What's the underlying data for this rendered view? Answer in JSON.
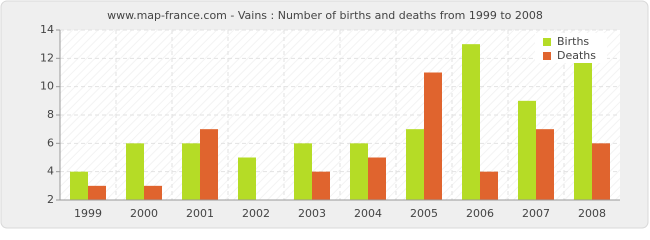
{
  "chart_data": {
    "type": "bar",
    "title": "www.map-france.com - Vains : Number of births and deaths from 1999 to 2008",
    "categories": [
      "1999",
      "2000",
      "2001",
      "2002",
      "2003",
      "2004",
      "2005",
      "2006",
      "2007",
      "2008"
    ],
    "series": [
      {
        "name": "Births",
        "color": "#b5dc26",
        "values": [
          4,
          6,
          6,
          5,
          6,
          6,
          7,
          13,
          9,
          12
        ]
      },
      {
        "name": "Deaths",
        "color": "#e0642e",
        "values": [
          3,
          3,
          7,
          2,
          4,
          5,
          11,
          4,
          7,
          6
        ]
      }
    ],
    "ylim": [
      2,
      14
    ],
    "yticks": [
      2,
      4,
      6,
      8,
      10,
      12,
      14
    ],
    "grid": true,
    "legend": "top-right"
  }
}
